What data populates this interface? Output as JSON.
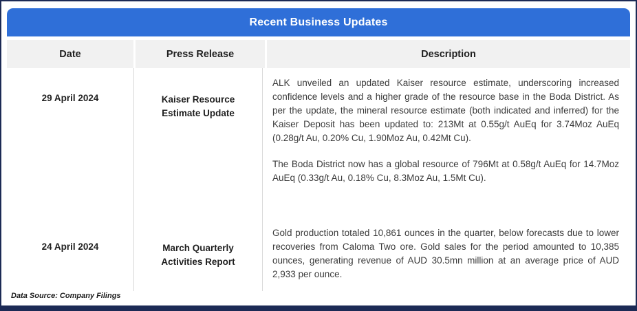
{
  "title": "Recent Business Updates",
  "columns": {
    "date": "Date",
    "press_release": "Press Release",
    "description": "Description"
  },
  "rows": [
    {
      "date": "29 April 2024",
      "press_release": "Kaiser Resource Estimate Update",
      "description_paragraphs": [
        "ALK unveiled an updated Kaiser resource estimate, underscoring increased confidence levels and a higher grade of the resource base in the Boda District. As per the update, the mineral resource estimate (both indicated and inferred) for the Kaiser Deposit has been updated to: 213Mt at 0.55g/t AuEq for 3.74Moz AuEq (0.28g/t Au, 0.20% Cu, 1.90Moz Au, 0.42Mt Cu).",
        "The Boda District now has a global resource of 796Mt at 0.58g/t AuEq for 14.7Moz AuEq (0.33g/t Au, 0.18% Cu, 8.3Moz Au, 1.5Mt Cu)."
      ]
    },
    {
      "date": "24 April 2024",
      "press_release": "March Quarterly Activities Report",
      "description_paragraphs": [
        "Gold production totaled 10,861 ounces in the quarter, below forecasts due to lower recoveries from Caloma Two ore. Gold sales for the period amounted to 10,385 ounces, generating revenue of AUD 30.5mn million at an average price of AUD 2,933 per ounce."
      ]
    }
  ],
  "footer": {
    "source_text": "Data Source: Company Filings"
  },
  "colors": {
    "header_bg": "#2f6fd8",
    "header_text": "#ffffff",
    "subheader_bg": "#f1f1f1",
    "cell_border": "#d9d9d9",
    "outer_border": "#1c2a55"
  }
}
